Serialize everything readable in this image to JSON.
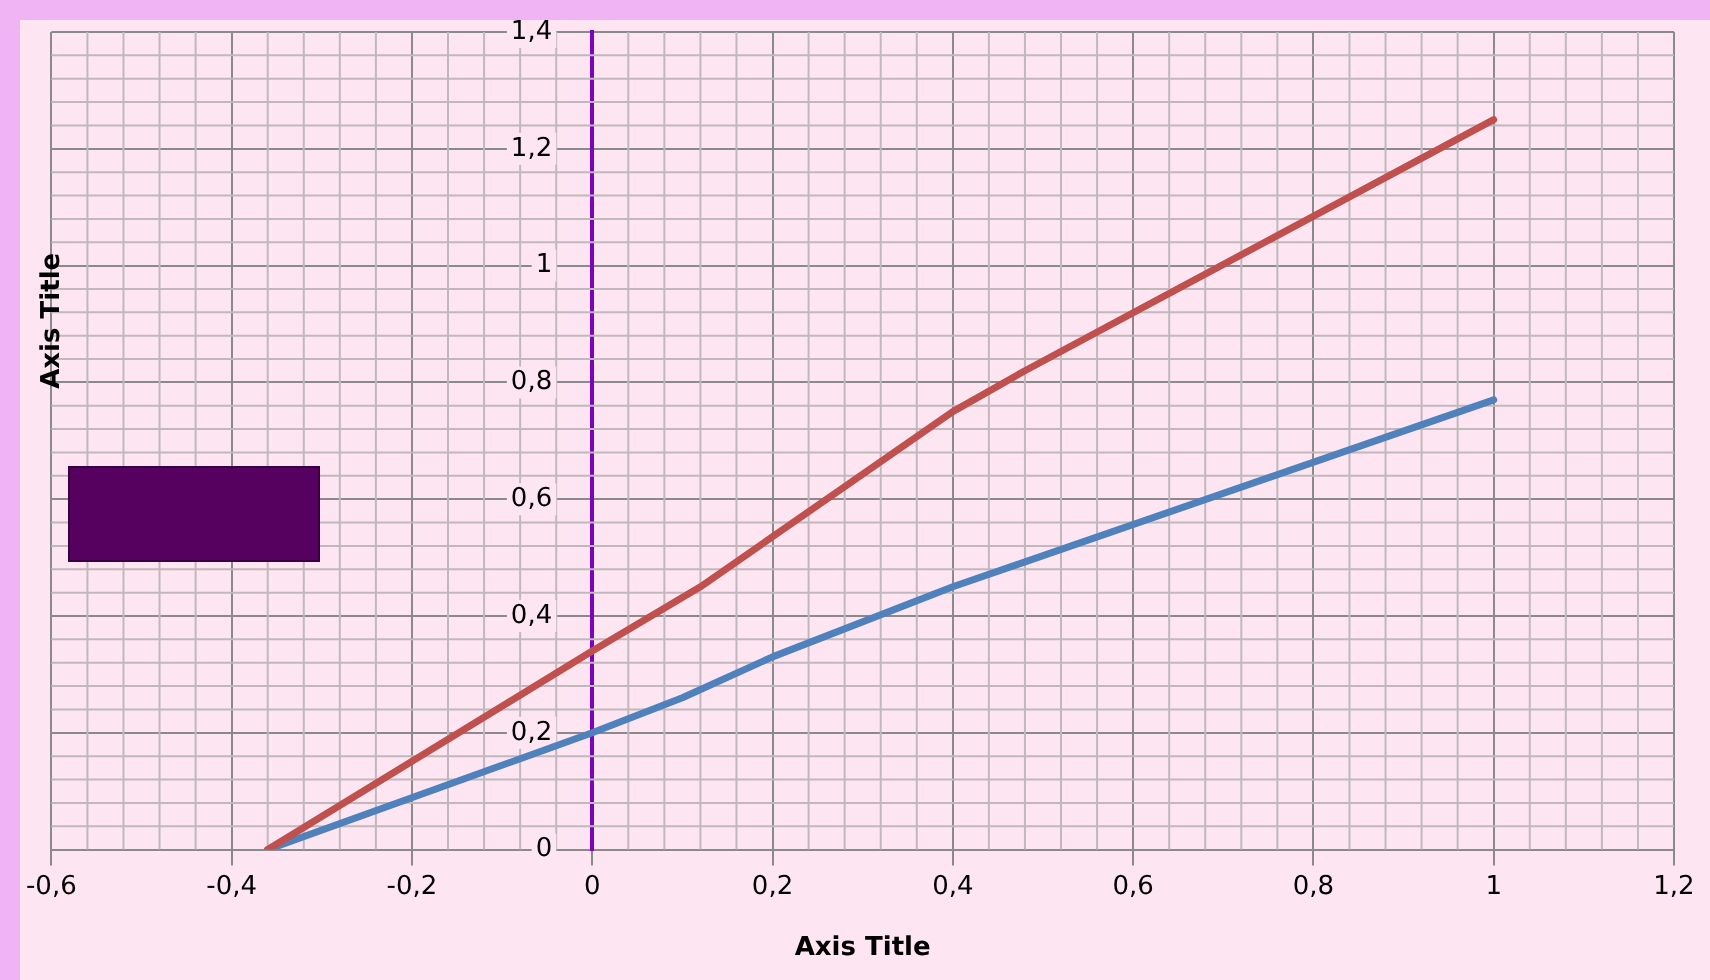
{
  "chart_data": {
    "type": "line",
    "xlabel": "Axis Title",
    "ylabel": "Axis Title",
    "series": [
      {
        "color": "#c0504d",
        "x": [
          -0.36,
          0,
          0.12,
          0.4,
          0.48,
          1
        ],
        "values": [
          0,
          0.34,
          0.45,
          0.75,
          0.82,
          1.25
        ]
      },
      {
        "color": "#4f81bd",
        "x": [
          -0.36,
          0,
          0.1,
          0.2,
          0.4,
          1
        ],
        "values": [
          0,
          0.2,
          0.26,
          0.33,
          0.45,
          0.77
        ]
      }
    ],
    "xlim": [
      -0.6,
      1.2
    ],
    "xticks": [
      {
        "value": -0.6,
        "label": "-0,6"
      },
      {
        "value": -0.4,
        "label": "-0,4"
      },
      {
        "value": -0.2,
        "label": "-0,2"
      },
      0,
      {
        "value": 0.2,
        "label": "0,2"
      },
      {
        "value": 0.4,
        "label": "0,4"
      },
      {
        "value": 0.6,
        "label": "0,6"
      },
      {
        "value": 0.8,
        "label": "0,8"
      },
      1,
      {
        "value": 1.2,
        "label": "1,2"
      }
    ],
    "ylim": [
      0,
      1.4
    ],
    "yticks": [
      0,
      {
        "value": 0.2,
        "label": "0,2"
      },
      {
        "value": 0.4,
        "label": "0,4"
      },
      {
        "value": 0.6,
        "label": "0,6"
      },
      {
        "value": 0.8,
        "label": "0,8"
      },
      1,
      {
        "value": 1.2,
        "label": "1,2"
      },
      {
        "value": 1.4,
        "label": "1,4"
      }
    ],
    "grid": true,
    "legend": false,
    "marker": "none",
    "line_style": "solid"
  }
}
